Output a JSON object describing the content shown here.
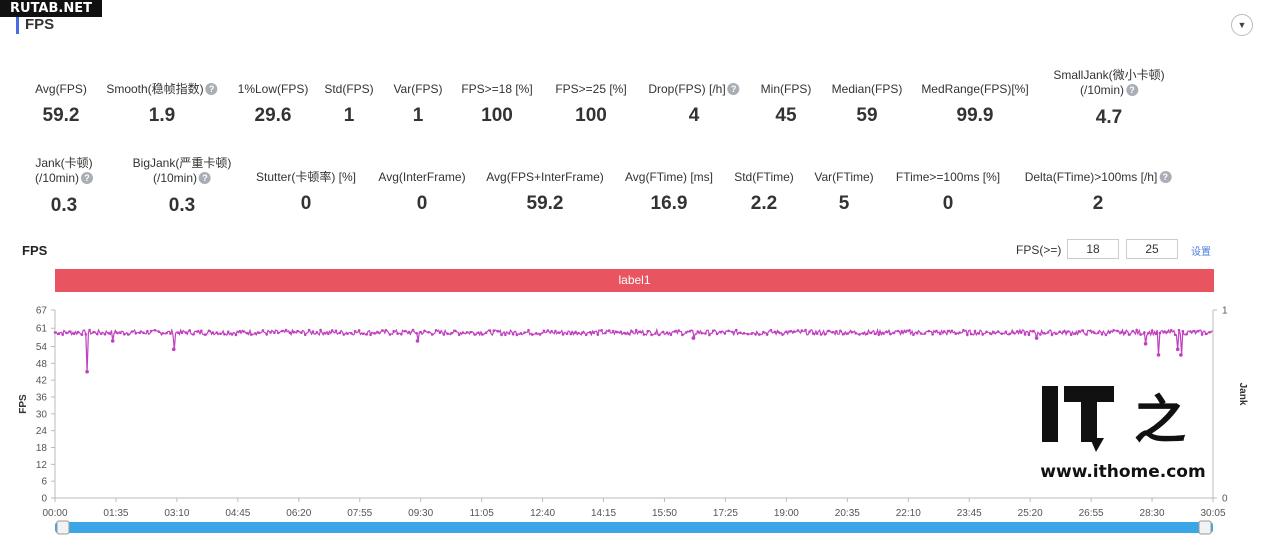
{
  "watermark": "RUTAB.NET",
  "section": {
    "title": "FPS"
  },
  "metrics_row1": [
    {
      "label": "Avg(FPS)",
      "value": "59.2",
      "help": false
    },
    {
      "label": "Smooth(稳帧指数)",
      "value": "1.9",
      "help": true
    },
    {
      "label": "1%Low(FPS)",
      "value": "29.6",
      "help": false
    },
    {
      "label": "Std(FPS)",
      "value": "1",
      "help": false
    },
    {
      "label": "Var(FPS)",
      "value": "1",
      "help": false
    },
    {
      "label": "FPS>=18 [%]",
      "value": "100",
      "help": false
    },
    {
      "label": "FPS>=25 [%]",
      "value": "100",
      "help": false
    },
    {
      "label": "Drop(FPS) [/h]",
      "value": "4",
      "help": true
    },
    {
      "label": "Min(FPS)",
      "value": "45",
      "help": false
    },
    {
      "label": "Median(FPS)",
      "value": "59",
      "help": false
    },
    {
      "label": "MedRange(FPS)[%]",
      "value": "99.9",
      "help": false
    },
    {
      "label": "SmallJank(微小卡顿)",
      "label2": "(/10min)",
      "value": "4.7",
      "help": true
    }
  ],
  "metrics_row2": [
    {
      "label": "Jank(卡顿)",
      "label2": "(/10min)",
      "value": "0.3",
      "help": true
    },
    {
      "label": "BigJank(严重卡顿)",
      "label2": "(/10min)",
      "value": "0.3",
      "help": true
    },
    {
      "label": "Stutter(卡顿率) [%]",
      "value": "0",
      "help": false
    },
    {
      "label": "Avg(InterFrame)",
      "value": "0",
      "help": false
    },
    {
      "label": "Avg(FPS+InterFrame)",
      "value": "59.2",
      "help": false
    },
    {
      "label": "Avg(FTime) [ms]",
      "value": "16.9",
      "help": false
    },
    {
      "label": "Std(FTime)",
      "value": "2.2",
      "help": false
    },
    {
      "label": "Var(FTime)",
      "value": "5",
      "help": false
    },
    {
      "label": "FTime>=100ms [%]",
      "value": "0",
      "help": false
    },
    {
      "label": "Delta(FTime)>100ms [/h]",
      "value": "2",
      "help": true
    }
  ],
  "chart_header": {
    "title": "FPS",
    "threshold_label": "FPS(>=)",
    "threshold1": "18",
    "threshold2": "25",
    "edit_label": "设置"
  },
  "chart_data": {
    "type": "line",
    "label_band": "label1",
    "ylabel": "FPS",
    "y2label": "Jank",
    "ylim": [
      0,
      67
    ],
    "yticks": [
      "0",
      "6",
      "12",
      "18",
      "24",
      "30",
      "36",
      "42",
      "48",
      "54",
      "61",
      "67"
    ],
    "y2ticks": [
      "0",
      "1"
    ],
    "xticks": [
      "00:00",
      "01:35",
      "03:10",
      "04:45",
      "06:20",
      "07:55",
      "09:30",
      "11:05",
      "12:40",
      "14:15",
      "15:50",
      "17:25",
      "19:00",
      "20:35",
      "22:10",
      "23:45",
      "25:20",
      "26:55",
      "28:30",
      "30:05"
    ],
    "series": [
      {
        "color": "#c040c0",
        "baseline": 59,
        "dips": [
          {
            "t": "00:50",
            "v": 45
          },
          {
            "t": "01:30",
            "v": 56
          },
          {
            "t": "03:05",
            "v": 53
          },
          {
            "t": "09:25",
            "v": 56
          },
          {
            "t": "16:35",
            "v": 57
          },
          {
            "t": "25:30",
            "v": 57
          },
          {
            "t": "28:20",
            "v": 55
          },
          {
            "t": "28:40",
            "v": 51
          },
          {
            "t": "29:10",
            "v": 53
          },
          {
            "t": "29:15",
            "v": 51
          }
        ]
      }
    ],
    "x_range": [
      "00:00",
      "30:05"
    ]
  },
  "overlay": {
    "ithome_url": "www.ithome.com"
  }
}
